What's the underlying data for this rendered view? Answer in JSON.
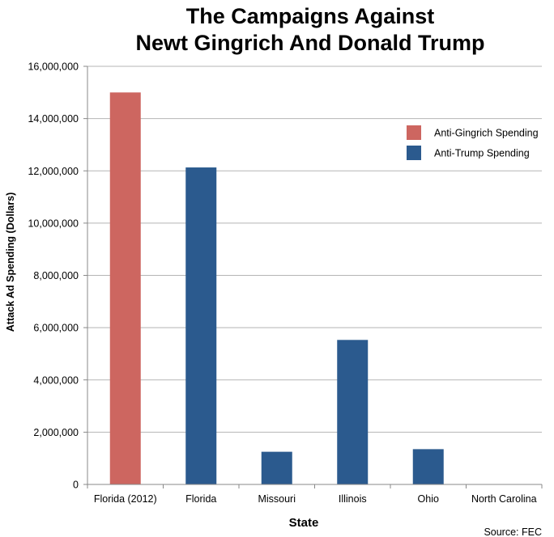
{
  "chart_data": {
    "type": "bar",
    "title_lines": [
      "The Campaigns Against",
      "Newt Gingrich And Donald Trump"
    ],
    "xlabel": "State",
    "ylabel": "Attack Ad Spending (Dollars)",
    "categories": [
      "Florida (2012)",
      "Florida",
      "Missouri",
      "Illinois",
      "Ohio",
      "North Carolina"
    ],
    "series": [
      {
        "name": "Anti-Gingrich Spending",
        "color": "#cd6660",
        "values": [
          15000000,
          null,
          null,
          null,
          null,
          null
        ]
      },
      {
        "name": "Anti-Trump Spending",
        "color": "#2b5a8e",
        "values": [
          null,
          12130000,
          1250000,
          5530000,
          1350000,
          0
        ]
      }
    ],
    "ylim": [
      0,
      16000000
    ],
    "yticks": [
      0,
      2000000,
      4000000,
      6000000,
      8000000,
      10000000,
      12000000,
      14000000,
      16000000
    ],
    "ytick_labels": [
      "0",
      "2,000,000",
      "4,000,000",
      "6,000,000",
      "8,000,000",
      "10,000,000",
      "12,000,000",
      "14,000,000",
      "16,000,000"
    ],
    "grid": true,
    "legend_position": "top-right",
    "source": "Source: FEC"
  }
}
